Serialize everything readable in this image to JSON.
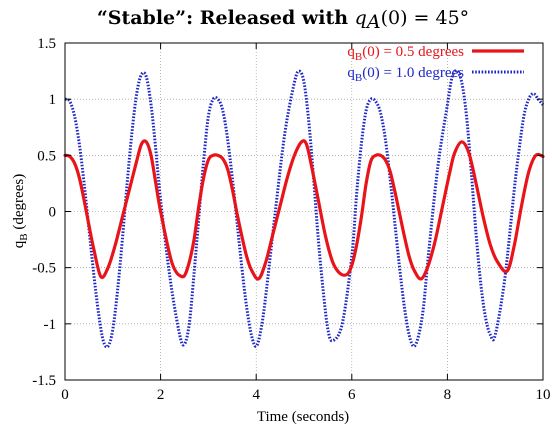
{
  "chart_data": {
    "type": "line",
    "title": {
      "prefix": "“Stable”: Released with ",
      "math_var": "q",
      "math_sub": "A",
      "math_rest": "(0) = 45°"
    },
    "xlabel": "Time  (seconds)",
    "ylabel": {
      "main": "q",
      "sub": "B",
      "rest": "  (degrees)"
    },
    "xlim": [
      0,
      10
    ],
    "ylim": [
      -1.5,
      1.5
    ],
    "xticks": [
      0,
      2,
      4,
      6,
      8,
      10
    ],
    "yticks": [
      -1.5,
      -1,
      -0.5,
      0,
      0.5,
      1,
      1.5
    ],
    "xtick_labels": [
      "0",
      "2",
      "4",
      "6",
      "8",
      "10"
    ],
    "ytick_labels": [
      "-1.5",
      "-1",
      "-0.5",
      "0",
      "0.5",
      "1",
      "1.5"
    ],
    "grid": true,
    "legend_position": "top-right",
    "series": [
      {
        "name_main": "q",
        "name_sub": "B",
        "name_rest": "(0) = 0.5 degrees",
        "color": "#e8141a",
        "style": "solid",
        "x": [
          0,
          0.1,
          0.2,
          0.3,
          0.4,
          0.5,
          0.6,
          0.75,
          0.9,
          1.05,
          1.2,
          1.35,
          1.5,
          1.6,
          1.7,
          1.8,
          1.9,
          2.0,
          2.2,
          2.3,
          2.4,
          2.5,
          2.6,
          2.7,
          2.8,
          2.9,
          3.0,
          3.1,
          3.2,
          3.3,
          3.4,
          3.5,
          3.6,
          3.7,
          3.8,
          3.9,
          4.05,
          4.2,
          4.35,
          4.5,
          4.65,
          4.8,
          4.95,
          5.05,
          5.15,
          5.3,
          5.45,
          5.6,
          5.75,
          5.9,
          6.0,
          6.1,
          6.2,
          6.3,
          6.4,
          6.5,
          6.6,
          6.7,
          6.8,
          6.9,
          7.0,
          7.1,
          7.2,
          7.3,
          7.45,
          7.6,
          7.75,
          7.9,
          8.05,
          8.15,
          8.3,
          8.45,
          8.6,
          8.75,
          8.9,
          9.05,
          9.25,
          9.4,
          9.55,
          9.7,
          9.85,
          10.0
        ],
        "y": [
          0.5,
          0.49,
          0.43,
          0.3,
          0.1,
          -0.12,
          -0.33,
          -0.58,
          -0.5,
          -0.3,
          -0.05,
          0.2,
          0.45,
          0.6,
          0.62,
          0.5,
          0.25,
          0.0,
          -0.4,
          -0.52,
          -0.57,
          -0.57,
          -0.45,
          -0.25,
          0.05,
          0.3,
          0.46,
          0.5,
          0.5,
          0.47,
          0.38,
          0.2,
          -0.02,
          -0.22,
          -0.4,
          -0.52,
          -0.6,
          -0.45,
          -0.2,
          0.05,
          0.3,
          0.5,
          0.62,
          0.6,
          0.42,
          0.1,
          -0.22,
          -0.45,
          -0.55,
          -0.56,
          -0.48,
          -0.3,
          -0.05,
          0.25,
          0.45,
          0.5,
          0.5,
          0.46,
          0.36,
          0.18,
          -0.02,
          -0.22,
          -0.4,
          -0.52,
          -0.6,
          -0.48,
          -0.25,
          0.05,
          0.35,
          0.52,
          0.62,
          0.52,
          0.25,
          -0.05,
          -0.3,
          -0.45,
          -0.53,
          -0.3,
          0.05,
          0.35,
          0.5,
          0.49
        ]
      },
      {
        "name_main": "q",
        "name_sub": "B",
        "name_rest": "(0) = 1.0 degrees",
        "color": "#1e28c8",
        "style": "dotted",
        "x": [
          0,
          0.1,
          0.2,
          0.3,
          0.4,
          0.5,
          0.6,
          0.7,
          0.8,
          0.9,
          1.0,
          1.1,
          1.2,
          1.3,
          1.4,
          1.5,
          1.6,
          1.7,
          1.8,
          1.9,
          2.0,
          2.2,
          2.4,
          2.5,
          2.6,
          2.7,
          2.8,
          2.9,
          3.0,
          3.1,
          3.2,
          3.3,
          3.4,
          3.5,
          3.6,
          3.7,
          3.8,
          3.9,
          4.0,
          4.1,
          4.2,
          4.4,
          4.6,
          4.8,
          4.9,
          5.0,
          5.1,
          5.2,
          5.3,
          5.4,
          5.5,
          5.6,
          5.8,
          6.0,
          6.1,
          6.2,
          6.3,
          6.4,
          6.5,
          6.6,
          6.7,
          6.8,
          6.9,
          7.0,
          7.1,
          7.2,
          7.3,
          7.4,
          7.5,
          7.6,
          7.8,
          8.0,
          8.1,
          8.2,
          8.3,
          8.4,
          8.5,
          8.6,
          8.7,
          8.8,
          8.9,
          9.0,
          9.2,
          9.4,
          9.5,
          9.6,
          9.7,
          9.8,
          9.9,
          10.0
        ],
        "y": [
          1.0,
          0.98,
          0.85,
          0.6,
          0.25,
          -0.15,
          -0.55,
          -0.9,
          -1.15,
          -1.2,
          -1.05,
          -0.7,
          -0.25,
          0.25,
          0.7,
          1.05,
          1.22,
          1.2,
          0.95,
          0.55,
          0.1,
          -0.6,
          -1.1,
          -1.18,
          -1.0,
          -0.55,
          -0.05,
          0.45,
          0.85,
          1.0,
          1.0,
          0.9,
          0.65,
          0.3,
          -0.1,
          -0.5,
          -0.85,
          -1.1,
          -1.2,
          -1.05,
          -0.75,
          0.0,
          0.7,
          1.15,
          1.25,
          1.15,
          0.8,
          0.3,
          -0.25,
          -0.7,
          -1.05,
          -1.15,
          -1.0,
          -0.4,
          0.15,
          0.6,
          0.9,
          1.0,
          0.98,
          0.88,
          0.65,
          0.3,
          -0.1,
          -0.5,
          -0.85,
          -1.1,
          -1.2,
          -1.1,
          -0.85,
          -0.4,
          0.4,
          0.95,
          1.2,
          1.25,
          1.15,
          0.85,
          0.35,
          -0.2,
          -0.65,
          -0.95,
          -1.1,
          -1.1,
          -0.6,
          0.2,
          0.55,
          0.85,
          1.0,
          1.05,
          1.0,
          0.95
        ]
      }
    ]
  }
}
